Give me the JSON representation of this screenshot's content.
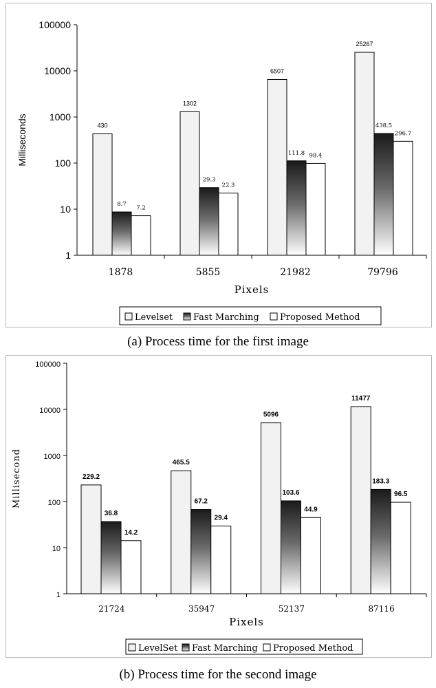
{
  "figures": [
    {
      "caption": "(a) Process time for the first image",
      "chart_data": {
        "type": "bar",
        "yscale": "log",
        "ylim": [
          1,
          100000
        ],
        "yticks": [
          "1",
          "10",
          "100",
          "1000",
          "10000",
          "100000"
        ],
        "xlabel": "Pixels",
        "ylabel": "Milliseconds",
        "categories": [
          "1878",
          "5855",
          "21982",
          "79796"
        ],
        "legend_position": "bottom",
        "series": [
          {
            "name": "Levelset",
            "values": [
              430,
              1302,
              6507,
              25267
            ],
            "labels": [
              "430",
              "1302",
              "6507",
              "25267"
            ],
            "fill": "#f2f2f2"
          },
          {
            "name": "Fast Marching",
            "values": [
              8.7,
              29.3,
              111.8,
              438.5
            ],
            "labels": [
              "8.7",
              "29.3",
              "111.8",
              "438.5"
            ],
            "fill": "gradient"
          },
          {
            "name": "Proposed Method",
            "values": [
              7.2,
              22.3,
              98.4,
              296.7
            ],
            "labels": [
              "7.2",
              "22.3",
              "98.4",
              "296.7"
            ],
            "fill": "#ffffff"
          }
        ]
      }
    },
    {
      "caption": "(b) Process time for the second image",
      "chart_data": {
        "type": "bar",
        "yscale": "log",
        "ylim": [
          1,
          100000
        ],
        "yticks": [
          "1",
          "10",
          "100",
          "1000",
          "10000",
          "100000"
        ],
        "xlabel": "Pixels",
        "ylabel": "Millisecond",
        "categories": [
          "21724",
          "35947",
          "52137",
          "87116"
        ],
        "legend_position": "bottom",
        "series": [
          {
            "name": "LevelSet",
            "values": [
              229.2,
              465.5,
              5096,
              11477
            ],
            "labels": [
              "229.2",
              "465.5",
              "5096",
              "11477"
            ],
            "fill": "#f2f2f2"
          },
          {
            "name": "Fast Marching",
            "values": [
              36.8,
              67.2,
              103.6,
              183.3
            ],
            "labels": [
              "36.8",
              "67.2",
              "103.6",
              "183.3"
            ],
            "fill": "gradient"
          },
          {
            "name": "Proposed Method",
            "values": [
              14.2,
              29.4,
              44.9,
              96.5
            ],
            "labels": [
              "14.2",
              "29.4",
              "44.9",
              "96.5"
            ],
            "fill": "#ffffff"
          }
        ]
      }
    }
  ]
}
